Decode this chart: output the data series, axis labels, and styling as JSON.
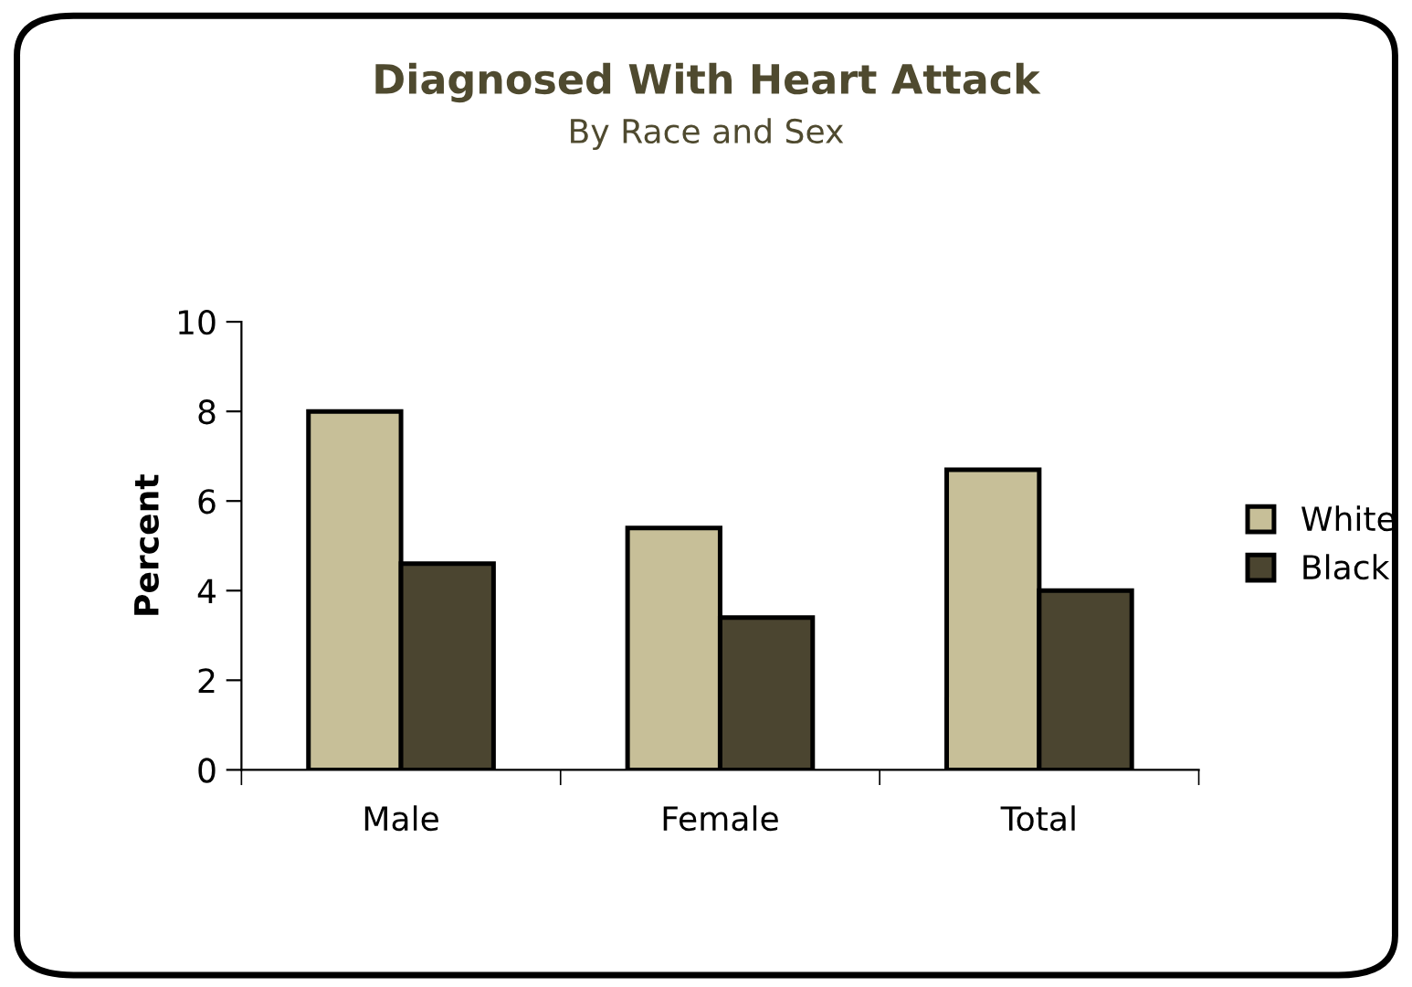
{
  "chart_data": {
    "type": "bar",
    "title": "Diagnosed With Heart Attack",
    "subtitle": "By Race and Sex",
    "ylabel": "Percent",
    "categories": [
      "Male",
      "Female",
      "Total"
    ],
    "series": [
      {
        "name": "White",
        "color": "#c7bf98",
        "values": [
          8.0,
          5.4,
          6.7
        ]
      },
      {
        "name": "Black",
        "color": "#4b4530",
        "values": [
          4.6,
          3.4,
          4.0
        ]
      }
    ],
    "ylim": [
      0,
      10
    ],
    "yticks": [
      0,
      2,
      4,
      6,
      8,
      10
    ],
    "grid": false,
    "legend": "right"
  }
}
